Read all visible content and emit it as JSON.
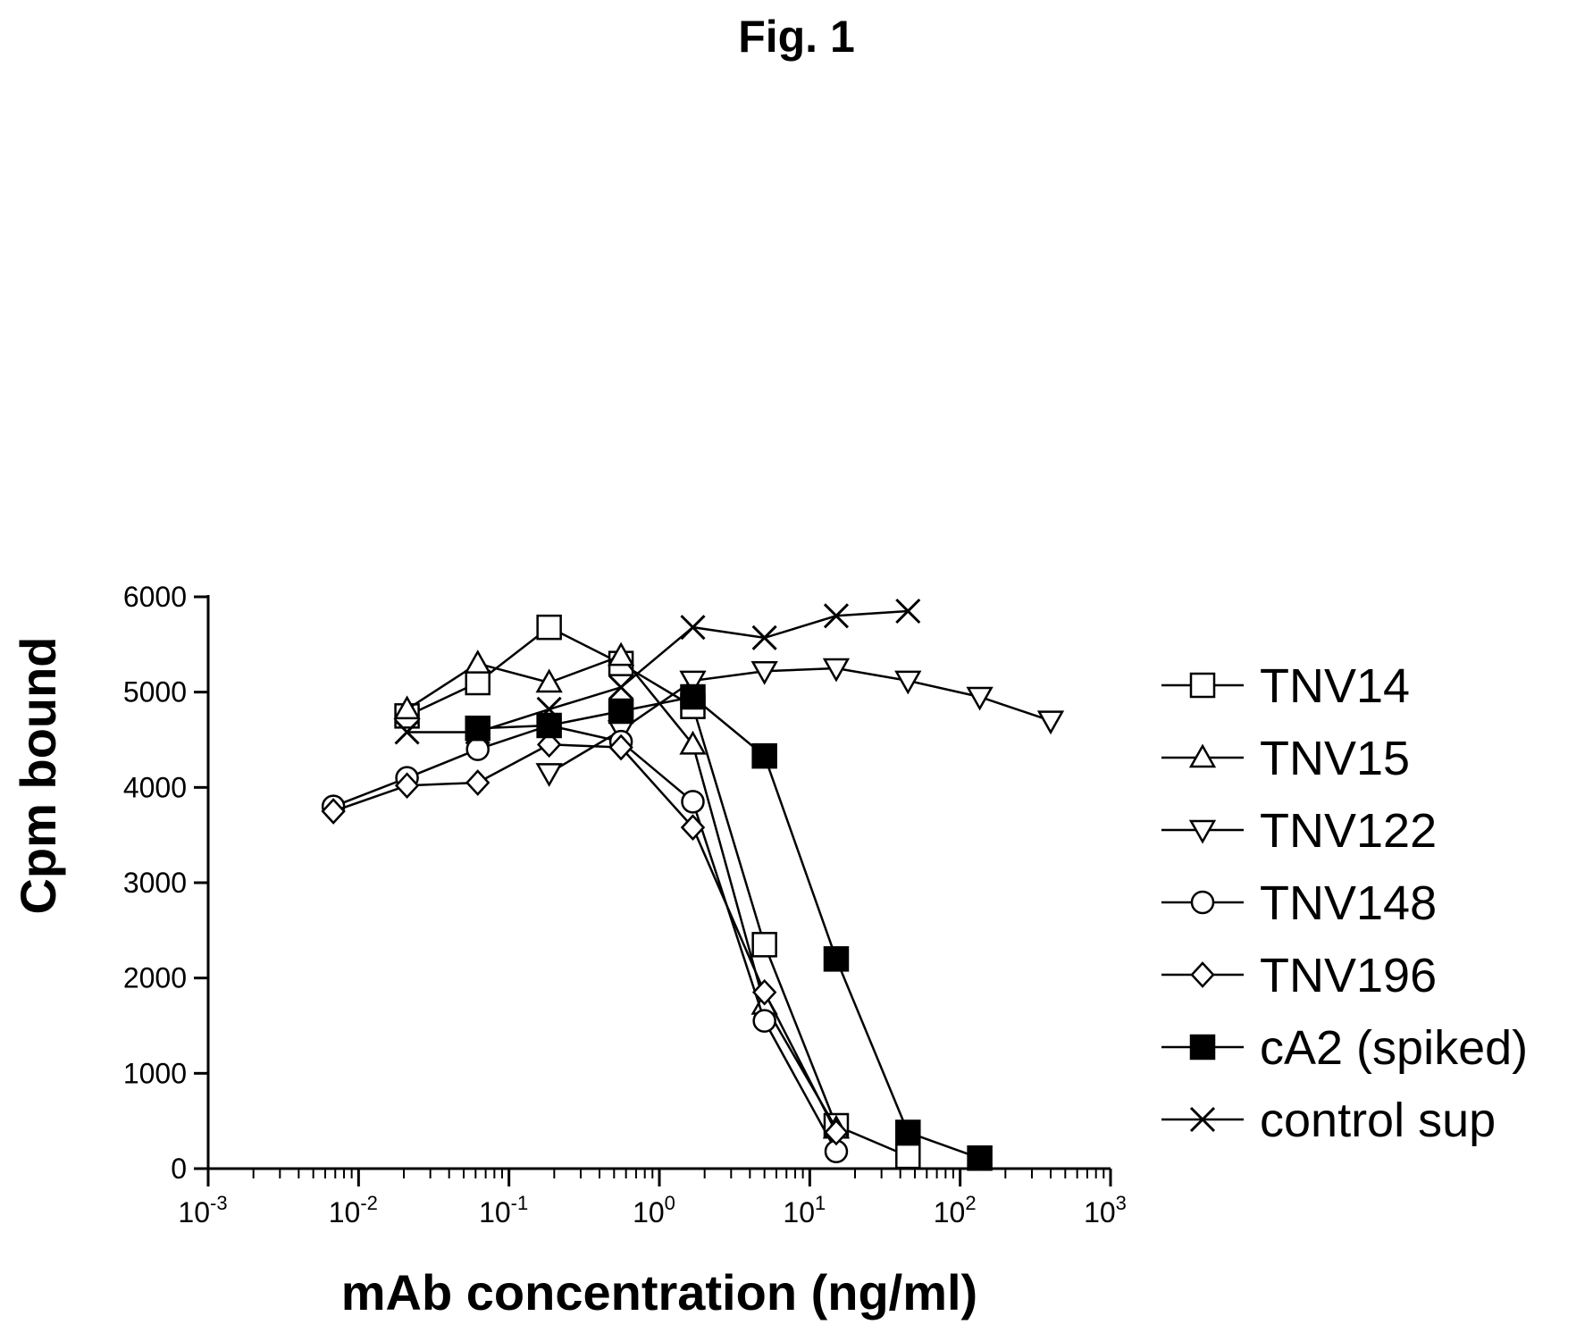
{
  "figure": {
    "title": "Fig. 1"
  },
  "chart_data": {
    "type": "line",
    "title": "",
    "xlabel": "mAb concentration (ng/ml)",
    "ylabel": "Cpm bound",
    "xscale": "log",
    "xlim": [
      0.001,
      1000
    ],
    "ylim": [
      0,
      6000
    ],
    "x_ticks": [
      {
        "base": "10",
        "exp": "-3",
        "value": 0.001
      },
      {
        "base": "10",
        "exp": "-2",
        "value": 0.01
      },
      {
        "base": "10",
        "exp": "-1",
        "value": 0.1
      },
      {
        "base": "10",
        "exp": "0",
        "value": 1
      },
      {
        "base": "10",
        "exp": "1",
        "value": 10
      },
      {
        "base": "10",
        "exp": "2",
        "value": 100
      },
      {
        "base": "10",
        "exp": "3",
        "value": 1000
      }
    ],
    "y_ticks": [
      {
        "label": "0",
        "value": 0
      },
      {
        "label": "1000",
        "value": 1000
      },
      {
        "label": "2000",
        "value": 2000
      },
      {
        "label": "3000",
        "value": 3000
      },
      {
        "label": "4000",
        "value": 4000
      },
      {
        "label": "5000",
        "value": 5000
      },
      {
        "label": "6000",
        "value": 6000
      }
    ],
    "grid": false,
    "legend_position": "right",
    "series": [
      {
        "name": "TNV14",
        "marker": "square-open",
        "x": [
          0.021,
          0.062,
          0.185,
          0.556,
          1.67,
          5,
          15,
          45
        ],
        "y": [
          4750,
          5100,
          5680,
          5300,
          4850,
          2350,
          450,
          130
        ]
      },
      {
        "name": "TNV15",
        "marker": "triangle-up-open",
        "x": [
          0.021,
          0.062,
          0.185,
          0.556,
          1.67,
          5,
          15
        ],
        "y": [
          4820,
          5300,
          5100,
          5380,
          4450,
          1720,
          420
        ]
      },
      {
        "name": "TNV122",
        "marker": "triangle-down-open",
        "x": [
          0.185,
          0.556,
          1.67,
          5,
          15,
          45,
          135,
          400
        ],
        "y": [
          4150,
          4600,
          5120,
          5220,
          5250,
          5120,
          4950,
          4700
        ]
      },
      {
        "name": "TNV148",
        "marker": "circle-open",
        "x": [
          0.0068,
          0.021,
          0.062,
          0.185,
          0.556,
          1.67,
          5,
          15
        ],
        "y": [
          3800,
          4100,
          4400,
          4650,
          4480,
          3850,
          1550,
          180
        ]
      },
      {
        "name": "TNV196",
        "marker": "diamond-open",
        "x": [
          0.0068,
          0.021,
          0.062,
          0.185,
          0.556,
          1.67,
          5,
          15
        ],
        "y": [
          3750,
          4020,
          4050,
          4450,
          4420,
          3580,
          1850,
          380
        ]
      },
      {
        "name": "cA2 (spiked)",
        "marker": "square-filled",
        "x": [
          0.062,
          0.185,
          0.556,
          1.67,
          5,
          15,
          45,
          135
        ],
        "y": [
          4620,
          4650,
          4800,
          4950,
          4330,
          2200,
          380,
          110
        ]
      },
      {
        "name": "control sup",
        "marker": "cross",
        "x": [
          0.021,
          0.062,
          0.185,
          0.556,
          1.67,
          5,
          15,
          45
        ],
        "y": [
          4580,
          4580,
          4820,
          5050,
          5680,
          5570,
          5800,
          5850
        ]
      }
    ]
  }
}
